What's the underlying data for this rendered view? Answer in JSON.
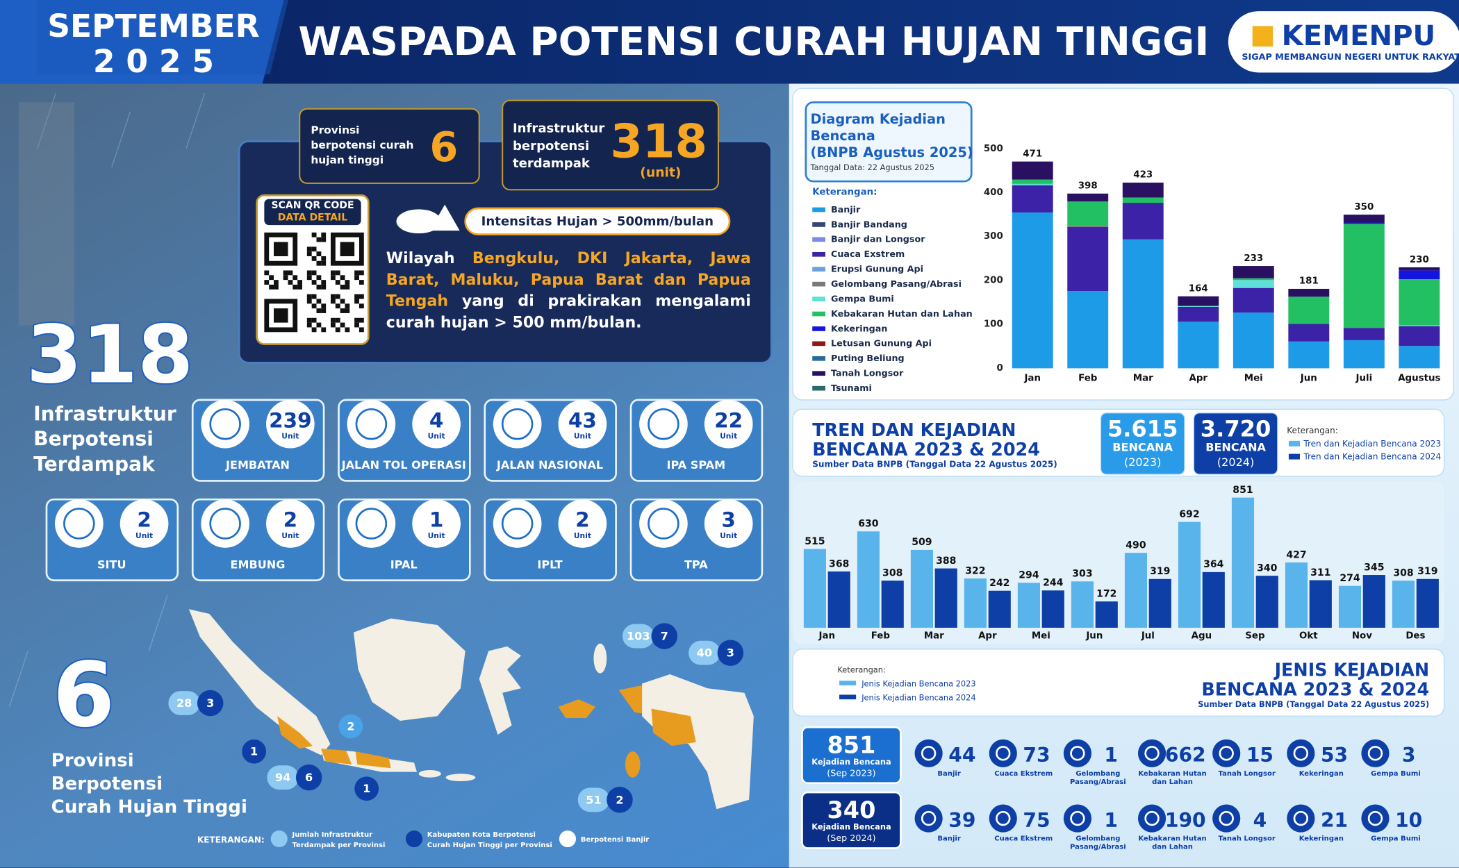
{
  "header": {
    "month": "SEPTEMBER",
    "year": "2 0 2 5",
    "title": "WASPADA POTENSI CURAH HUJAN TINGGI",
    "logo": "KEMENPU",
    "tagline": "SIGAP MEMBANGUN NEGERI UNTUK RAKYAT"
  },
  "summary": {
    "provinces": {
      "label_lines": [
        "Provinsi",
        "berpotensi curah",
        "hujan tinggi"
      ],
      "value": 6
    },
    "infrastructure": {
      "label_lines": [
        "Infrastruktur",
        "berpotensi",
        "terdampak"
      ],
      "value": 318,
      "unit": "(unit)"
    },
    "qr": {
      "title": "SCAN QR CODE",
      "subtitle": "DATA DETAIL"
    },
    "intensity": "Intensitas Hujan > 500mm/bulan",
    "region_text": {
      "before": "Wilayah",
      "highlight": "Bengkulu, DKI Jakarta, Jawa Barat, Maluku, Papua Barat dan Papua Tengah",
      "after": "yang di prakirakan mengalami curah hujan > 500 mm/bulan."
    }
  },
  "totals": {
    "infrastructure": {
      "value": 318,
      "label_lines": [
        "Infrastruktur",
        "Berpotensi",
        "Terdampak"
      ]
    },
    "provinces": {
      "value": 6,
      "label_lines": [
        "Provinsi",
        "Berpotensi",
        "Curah Hujan Tinggi"
      ]
    }
  },
  "infrastructure": {
    "unit": "Unit",
    "items": [
      {
        "name": "JEMBATAN",
        "value": 239
      },
      {
        "name": "JALAN TOL OPERASI",
        "value": 4
      },
      {
        "name": "JALAN NASIONAL",
        "value": 43
      },
      {
        "name": "IPA SPAM",
        "value": 22
      },
      {
        "name": "SITU",
        "value": 2
      },
      {
        "name": "EMBUNG",
        "value": 2
      },
      {
        "name": "IPAL",
        "value": 1
      },
      {
        "name": "IPLT",
        "value": 2
      },
      {
        "name": "TPA",
        "value": 3
      }
    ]
  },
  "map": {
    "badges": [
      {
        "infra": 28,
        "regencies": 3
      },
      {
        "infra": 103,
        "regencies": 7
      },
      {
        "infra": 40,
        "regencies": 3
      },
      {
        "infra": 94,
        "regencies": 6
      },
      {
        "infra": 51,
        "regencies": 2
      }
    ],
    "singles": [
      {
        "regencies": 2
      },
      {
        "regencies": 1
      },
      {
        "regencies": 1
      }
    ],
    "legend": {
      "title": "KETERANGAN:",
      "items": [
        [
          "Jumlah Infrastruktur",
          "Terdampak per Provinsi"
        ],
        [
          "Kabupaten Kota Berpotensi",
          "Curah Hujan Tinggi per Provinsi"
        ],
        [
          "Berpotensi Banjir"
        ]
      ]
    }
  },
  "chart_data": [
    {
      "type": "stacked-bar",
      "title_lines": [
        "Diagram Kejadian",
        "Bencana",
        "(BNPB Agustus 2025)"
      ],
      "subtitle": "Tanggal Data: 22 Agustus 2025",
      "legend_title": "Keterangan:",
      "categories": [
        "Jan",
        "Feb",
        "Mar",
        "Apr",
        "Mei",
        "Jun",
        "Juli",
        "Agustus"
      ],
      "ylim": [
        0,
        500
      ],
      "yticks": [
        0,
        100,
        200,
        300,
        400,
        500
      ],
      "grid": false,
      "totals": [
        471,
        398,
        423,
        164,
        233,
        181,
        350,
        230
      ],
      "series": [
        {
          "name": "Banjir",
          "color": "#1e9be6",
          "values": [
            355,
            176,
            294,
            106,
            127,
            61,
            64,
            51
          ]
        },
        {
          "name": "Banjir Bandang",
          "color": "#36466e",
          "values": [
            0,
            0,
            0,
            0,
            0,
            0,
            0,
            0
          ]
        },
        {
          "name": "Banjir dan Longsor",
          "color": "#7d8be2",
          "values": [
            0,
            0,
            0,
            0,
            0,
            0,
            0,
            0
          ]
        },
        {
          "name": "Cuaca Exstrem",
          "color": "#3b22a6",
          "values": [
            62,
            146,
            83,
            34,
            56,
            40,
            28,
            45
          ]
        },
        {
          "name": "Erupsi Gunung Api",
          "color": "#6aa3da",
          "values": [
            0,
            0,
            0,
            0,
            0,
            0,
            0,
            0
          ]
        },
        {
          "name": "Gelombang Pasang/Abrasi",
          "color": "#7a7a7a",
          "values": [
            0,
            3,
            0,
            0,
            0,
            0,
            0,
            0
          ]
        },
        {
          "name": "Gempa Bumi",
          "color": "#5fe0d8",
          "values": [
            3,
            0,
            0,
            2,
            18,
            0,
            0,
            2
          ]
        },
        {
          "name": "Kebakaran Hutan dan Lahan",
          "color": "#22c063",
          "values": [
            10,
            55,
            12,
            0,
            4,
            62,
            237,
            105
          ]
        },
        {
          "name": "Kekeringan",
          "color": "#1414e0",
          "values": [
            0,
            0,
            0,
            0,
            0,
            0,
            3,
            20
          ]
        },
        {
          "name": "Letusan Gunung Api",
          "color": "#8b1a1a",
          "values": [
            0,
            0,
            0,
            0,
            0,
            0,
            0,
            0
          ]
        },
        {
          "name": "Puting Beliung",
          "color": "#2a6a9a",
          "values": [
            0,
            0,
            0,
            0,
            0,
            0,
            0,
            0
          ]
        },
        {
          "name": "Tanah Longsor",
          "color": "#2a1060",
          "values": [
            41,
            18,
            34,
            22,
            28,
            18,
            18,
            7
          ]
        },
        {
          "name": "Tsunami",
          "color": "#2b6b6b",
          "values": [
            0,
            0,
            0,
            0,
            0,
            0,
            0,
            0
          ]
        }
      ]
    },
    {
      "type": "grouped-bar",
      "ylim": [
        0,
        900
      ],
      "categories": [
        "Jan",
        "Feb",
        "Mar",
        "Apr",
        "Mei",
        "Jun",
        "Jul",
        "Agu",
        "Sep",
        "Okt",
        "Nov",
        "Des"
      ],
      "series": [
        {
          "name": "Tren dan Kejadian Bencana 2023",
          "color": "#5ab4ec",
          "values": [
            515,
            630,
            509,
            322,
            294,
            303,
            490,
            692,
            851,
            427,
            274,
            308
          ]
        },
        {
          "name": "Tren dan Kejadian Bencana 2024",
          "color": "#0d3fa6",
          "values": [
            368,
            308,
            388,
            242,
            244,
            172,
            319,
            364,
            340,
            311,
            345,
            319
          ]
        }
      ]
    }
  ],
  "trend_header": {
    "title_lines": [
      "TREN DAN KEJADIAN",
      "BENCANA 2023 & 2024"
    ],
    "subtitle": "Sumber Data BNPB (Tanggal Data 22 Agustus 2025)",
    "boxes": [
      {
        "value": "5.615",
        "label": "BENCANA",
        "year": "(2023)"
      },
      {
        "value": "3.720",
        "label": "BENCANA",
        "year": "(2024)"
      }
    ],
    "legend_title": "Keterangan:"
  },
  "jenis": {
    "title_lines": [
      "JENIS KEJADIAN",
      "BENCANA 2023 & 2024"
    ],
    "subtitle": "Sumber Data BNPB (Tanggal Data  22 Agustus 2025)",
    "legend_title": "Keterangan:",
    "legend": [
      "Jenis Kejadian Bencana 2023",
      "Jenis Kejadian Bencana 2024"
    ],
    "types": [
      [
        "Banjir"
      ],
      [
        "Cuaca Ekstrem"
      ],
      [
        "Gelombang",
        "Pasang/Abrasi"
      ],
      [
        "Kebakaran Hutan",
        "dan Lahan"
      ],
      [
        "Tanah Longsor"
      ],
      [
        "Kekeringan"
      ],
      [
        "Gempa Bumi"
      ]
    ],
    "rows": [
      {
        "total": 851,
        "total_label": "Kejadian Bencana",
        "period": "(Sep 2023)",
        "values": [
          44,
          73,
          1,
          662,
          15,
          53,
          3
        ]
      },
      {
        "total": 340,
        "total_label": "Kejadian Bencana",
        "period": "(Sep 2024)",
        "values": [
          39,
          75,
          1,
          190,
          4,
          21,
          10
        ]
      }
    ]
  }
}
